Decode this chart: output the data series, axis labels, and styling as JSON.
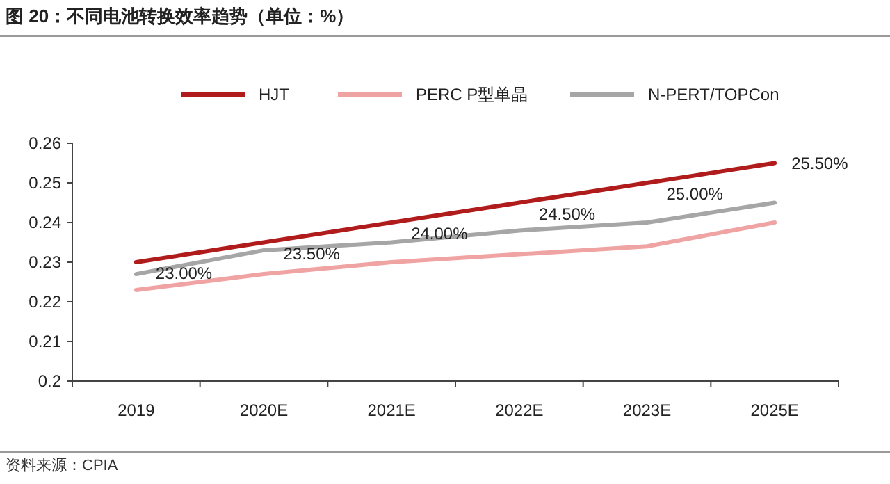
{
  "chart_data": {
    "type": "line",
    "title": "图 20：不同电池转换效率趋势（单位：%）",
    "categories": [
      "2019",
      "2020E",
      "2021E",
      "2022E",
      "2023E",
      "2025E"
    ],
    "series": [
      {
        "name": "HJT",
        "color": "#b01c1c",
        "values": [
          0.23,
          0.235,
          0.24,
          0.245,
          0.25,
          0.255
        ],
        "value_labels": [
          "23.00%",
          "23.50%",
          "24.00%",
          "24.50%",
          "25.00%",
          "25.50%"
        ]
      },
      {
        "name": "PERC P型单晶",
        "color": "#f0a3a3",
        "values": [
          0.223,
          0.227,
          0.23,
          0.232,
          0.234,
          0.24
        ]
      },
      {
        "name": "N-PERT/TOPCon",
        "color": "#a6a6a6",
        "values": [
          0.227,
          0.233,
          0.235,
          0.238,
          0.24,
          0.245
        ]
      }
    ],
    "ylim": [
      0.2,
      0.26
    ],
    "yticks": [
      0.2,
      0.21,
      0.22,
      0.23,
      0.24,
      0.25,
      0.26
    ],
    "legend": "top",
    "grid": false,
    "marker": "none",
    "line_style": "solid",
    "annotations": [
      "资料来源：CPIA"
    ]
  }
}
